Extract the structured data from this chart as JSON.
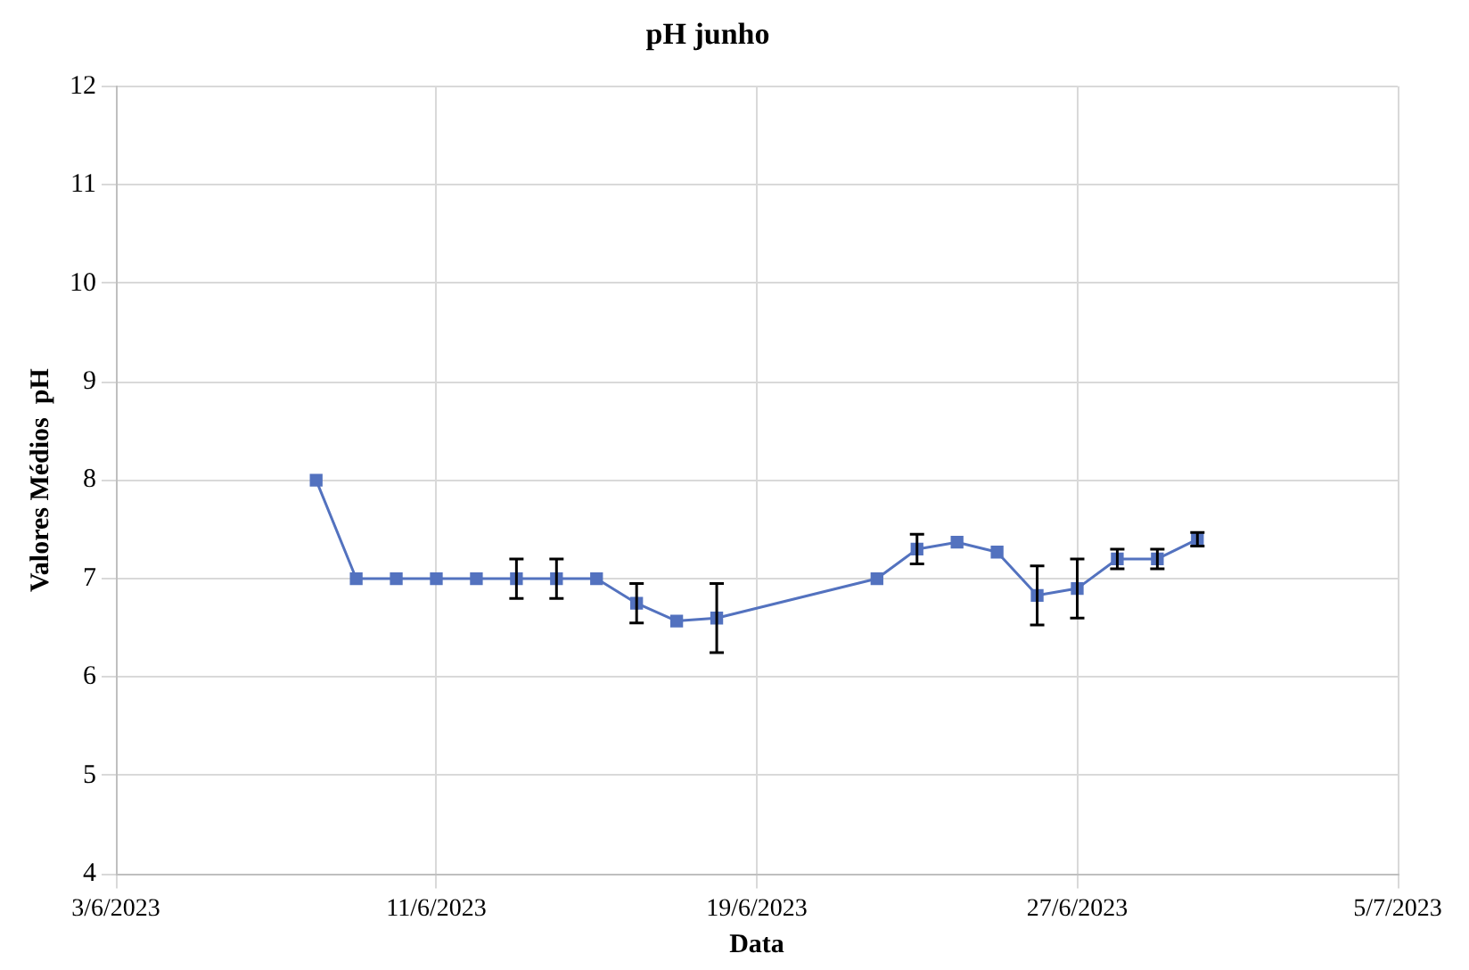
{
  "chart_data": {
    "type": "line",
    "title": "pH junho",
    "xlabel": "Data",
    "ylabel": "Valores Médios  pH",
    "x": [
      "2023-06-08",
      "2023-06-09",
      "2023-06-10",
      "2023-06-11",
      "2023-06-12",
      "2023-06-13",
      "2023-06-14",
      "2023-06-15",
      "2023-06-16",
      "2023-06-17",
      "2023-06-18",
      "2023-06-22",
      "2023-06-23",
      "2023-06-24",
      "2023-06-25",
      "2023-06-26",
      "2023-06-27",
      "2023-06-28",
      "2023-06-29",
      "2023-06-30"
    ],
    "series": [
      {
        "color": "#5372bf",
        "values": [
          8.0,
          7.0,
          7.0,
          7.0,
          7.0,
          7.0,
          7.0,
          7.0,
          6.75,
          6.57,
          6.6,
          7.0,
          7.3,
          7.37,
          7.27,
          6.83,
          6.9,
          7.2,
          7.2,
          7.4
        ],
        "errors": [
          null,
          null,
          null,
          null,
          null,
          0.2,
          0.2,
          null,
          0.2,
          null,
          0.35,
          null,
          0.15,
          null,
          null,
          0.3,
          0.3,
          0.1,
          0.1,
          0.07
        ]
      }
    ],
    "xlim": [
      "2023-06-03",
      "2023-07-05"
    ],
    "xticks": [
      {
        "value": "2023-06-03",
        "label": "3/6/2023"
      },
      {
        "value": "2023-06-11",
        "label": "11/6/2023"
      },
      {
        "value": "2023-06-19",
        "label": "19/6/2023"
      },
      {
        "value": "2023-06-27",
        "label": "27/6/2023"
      },
      {
        "value": "2023-07-05",
        "label": "5/7/2023"
      }
    ],
    "ylim": [
      4,
      12
    ],
    "yticks": [
      4,
      5,
      6,
      7,
      8,
      9,
      10,
      11,
      12
    ],
    "grid": true,
    "legend": false,
    "marker": "square",
    "line_style": "solid"
  }
}
